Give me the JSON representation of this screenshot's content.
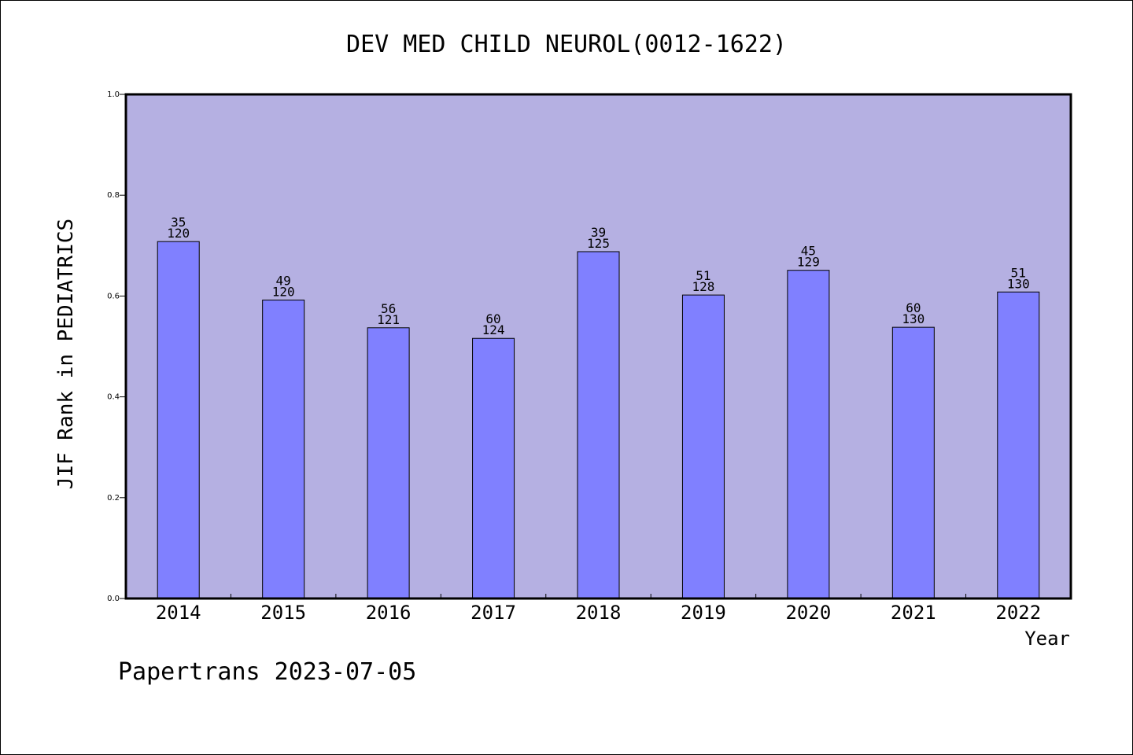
{
  "chart_data": {
    "type": "bar",
    "title": "DEV MED CHILD NEUROL(0012-1622)",
    "xlabel": "Year",
    "ylabel": "JIF Rank in PEDIATRICS",
    "ylim": [
      0,
      1.0
    ],
    "yticks": [
      "0.0",
      "0.2",
      "0.4",
      "0.6",
      "0.8",
      "1.0"
    ],
    "categories": [
      "2014",
      "2015",
      "2016",
      "2017",
      "2018",
      "2019",
      "2020",
      "2021",
      "2022"
    ],
    "values": [
      0.708,
      0.592,
      0.537,
      0.516,
      0.688,
      0.602,
      0.651,
      0.538,
      0.608
    ],
    "rank": [
      "35",
      "49",
      "56",
      "60",
      "39",
      "51",
      "45",
      "60",
      "51"
    ],
    "total": [
      "120",
      "120",
      "121",
      "124",
      "125",
      "128",
      "129",
      "130",
      "130"
    ],
    "grid": false,
    "colors": {
      "plot_background": "#b5b0e2",
      "bar_fill": "#8080ff",
      "bar_stroke": "#000000"
    }
  },
  "footer": "Papertrans 2023-07-05"
}
